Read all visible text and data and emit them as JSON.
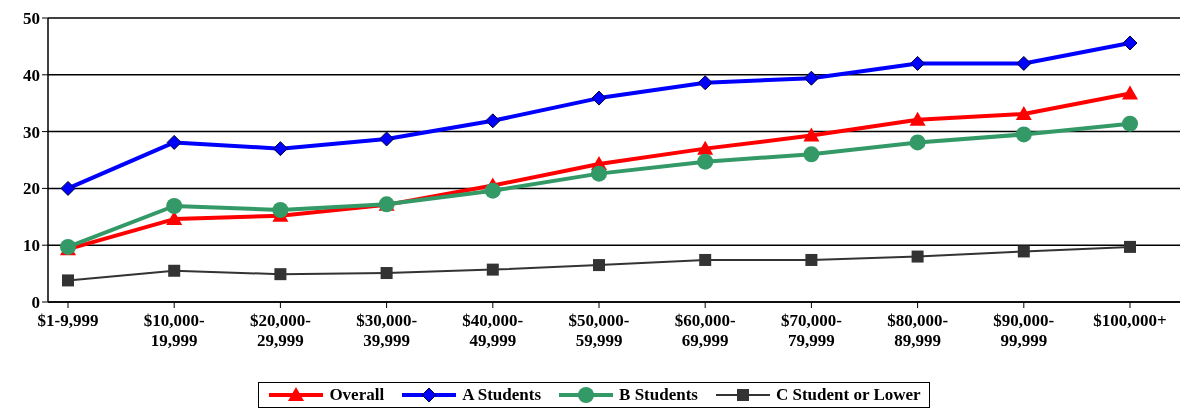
{
  "chart_data": {
    "type": "line",
    "categories": [
      "$1-9,999",
      "$10,000-19,999",
      "$20,000-29,999",
      "$30,000-39,999",
      "$40,000-49,999",
      "$50,000-59,999",
      "$60,000-69,999",
      "$70,000-79,999",
      "$80,000-89,999",
      "$90,000-99,999",
      "$100,000+"
    ],
    "series": [
      {
        "name": "Overall",
        "color": "#ff0000",
        "marker": "triangle",
        "values": [
          9.3,
          14.6,
          15.2,
          17.1,
          20.5,
          24.3,
          27,
          29.3,
          32.1,
          33.1,
          36.7
        ]
      },
      {
        "name": "A Students",
        "color": "#0000ff",
        "marker": "diamond",
        "values": [
          20,
          28.1,
          27,
          28.7,
          31.9,
          35.9,
          38.6,
          39.4,
          42,
          42,
          45.6
        ]
      },
      {
        "name": "B Students",
        "color": "#339966",
        "marker": "circle",
        "values": [
          9.7,
          16.9,
          16.2,
          17.2,
          19.6,
          22.6,
          24.7,
          26,
          28.1,
          29.5,
          31.4
        ]
      },
      {
        "name": "C Student or Lower",
        "color": "#333333",
        "marker": "square",
        "values": [
          3.8,
          5.5,
          4.9,
          5.1,
          5.7,
          6.5,
          7.4,
          7.4,
          8,
          8.9,
          9.7
        ]
      }
    ],
    "ylim": [
      0,
      50
    ],
    "yticks": [
      0,
      10,
      20,
      30,
      40,
      50
    ],
    "grid": "y",
    "legend": "bottom",
    "line_style": "solid"
  }
}
